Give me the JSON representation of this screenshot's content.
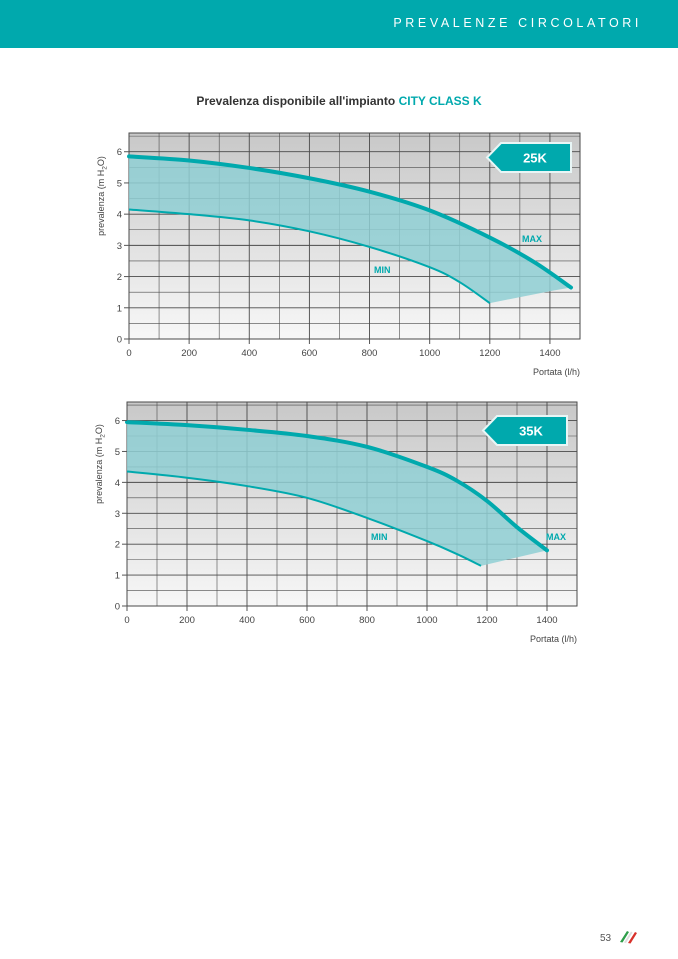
{
  "header": {
    "title": "PREVALENZE CIRCOLATORI"
  },
  "page_title": {
    "prefix": "Prevalenza disponibile all'impianto",
    "highlight": "CITY CLASS K"
  },
  "page_number": "53",
  "colors": {
    "accent": "#00a9ad",
    "fill": "#8fcfd3",
    "grid": "#4a4a4a"
  },
  "icons": {
    "logo": "italian-flag-logo-icon"
  },
  "chart_data": [
    {
      "type": "area",
      "model": "25K",
      "xlabel": "Portata (l/h)",
      "ylabel": "prevalenza (m H",
      "ylabel_sub": "2",
      "ylabel_end": "O)",
      "xlim": [
        0,
        1500
      ],
      "ylim": [
        0,
        6.6
      ],
      "xticks": [
        0,
        200,
        400,
        600,
        800,
        1000,
        1200,
        1400
      ],
      "yticks": [
        0,
        1,
        2,
        3,
        4,
        5,
        6
      ],
      "grid": true,
      "series": [
        {
          "name": "MAX",
          "x": [
            0,
            200,
            400,
            600,
            800,
            1000,
            1200,
            1350,
            1470
          ],
          "y": [
            5.85,
            5.72,
            5.48,
            5.15,
            4.72,
            4.12,
            3.25,
            2.45,
            1.65
          ]
        },
        {
          "name": "MIN",
          "x": [
            0,
            200,
            400,
            600,
            800,
            1000,
            1100,
            1200
          ],
          "y": [
            4.15,
            4.0,
            3.8,
            3.45,
            2.95,
            2.3,
            1.82,
            1.15
          ]
        }
      ],
      "closing_point": {
        "x": 1410,
        "y": 1.55
      }
    },
    {
      "type": "area",
      "model": "35K",
      "xlabel": "Portata (l/h)",
      "ylabel": "prevalenza (m H",
      "ylabel_sub": "2",
      "ylabel_end": "O)",
      "xlim": [
        0,
        1500
      ],
      "ylim": [
        0,
        6.6
      ],
      "xticks": [
        0,
        200,
        400,
        600,
        800,
        1000,
        1200,
        1400
      ],
      "yticks": [
        0,
        1,
        2,
        3,
        4,
        5,
        6
      ],
      "grid": true,
      "series": [
        {
          "name": "MAX",
          "x": [
            0,
            200,
            400,
            600,
            800,
            1000,
            1100,
            1200,
            1300,
            1400
          ],
          "y": [
            5.95,
            5.85,
            5.7,
            5.5,
            5.15,
            4.5,
            4.05,
            3.4,
            2.55,
            1.8
          ]
        },
        {
          "name": "MIN",
          "x": [
            0,
            200,
            400,
            600,
            800,
            1000,
            1100,
            1180
          ],
          "y": [
            4.35,
            4.15,
            3.88,
            3.5,
            2.85,
            2.1,
            1.68,
            1.3
          ]
        }
      ],
      "closing_point": {
        "x": 1400,
        "y": 1.8
      }
    }
  ]
}
